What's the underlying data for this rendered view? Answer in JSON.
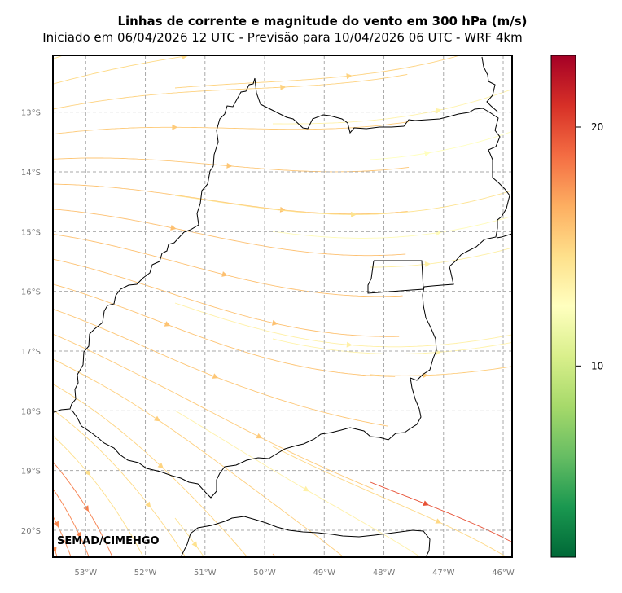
{
  "title": "Linhas de corrente e magnitude do vento em 300 hPa (m/s)",
  "subtitle": "Iniciado em 06/04/2026 12 UTC - Previsão para 10/04/2026 06 UTC - WRF 4km",
  "credit": "SEMAD/CIMEHGO",
  "map": {
    "lon_range": [
      -53.55,
      -45.85
    ],
    "lat_range": [
      -20.45,
      -12.05
    ],
    "lon_ticks": [
      {
        "value": -53,
        "label": "53°W"
      },
      {
        "value": -52,
        "label": "52°W"
      },
      {
        "value": -51,
        "label": "51°W"
      },
      {
        "value": -50,
        "label": "50°W"
      },
      {
        "value": -49,
        "label": "49°W"
      },
      {
        "value": -48,
        "label": "48°W"
      },
      {
        "value": -47,
        "label": "47°W"
      },
      {
        "value": -46,
        "label": "46°W"
      }
    ],
    "lat_ticks": [
      {
        "value": -13,
        "label": "13°S"
      },
      {
        "value": -14,
        "label": "14°S"
      },
      {
        "value": -15,
        "label": "15°S"
      },
      {
        "value": -16,
        "label": "16°S"
      },
      {
        "value": -17,
        "label": "17°S"
      },
      {
        "value": -18,
        "label": "18°S"
      },
      {
        "value": -19,
        "label": "19°S"
      },
      {
        "value": -20,
        "label": "20°S"
      }
    ],
    "grid": true,
    "colormap": "RdYlGn_r"
  },
  "colorbar": {
    "range": [
      2,
      23
    ],
    "ticks": [
      {
        "value": 10,
        "label": "10"
      },
      {
        "value": 20,
        "label": "20"
      }
    ]
  }
}
